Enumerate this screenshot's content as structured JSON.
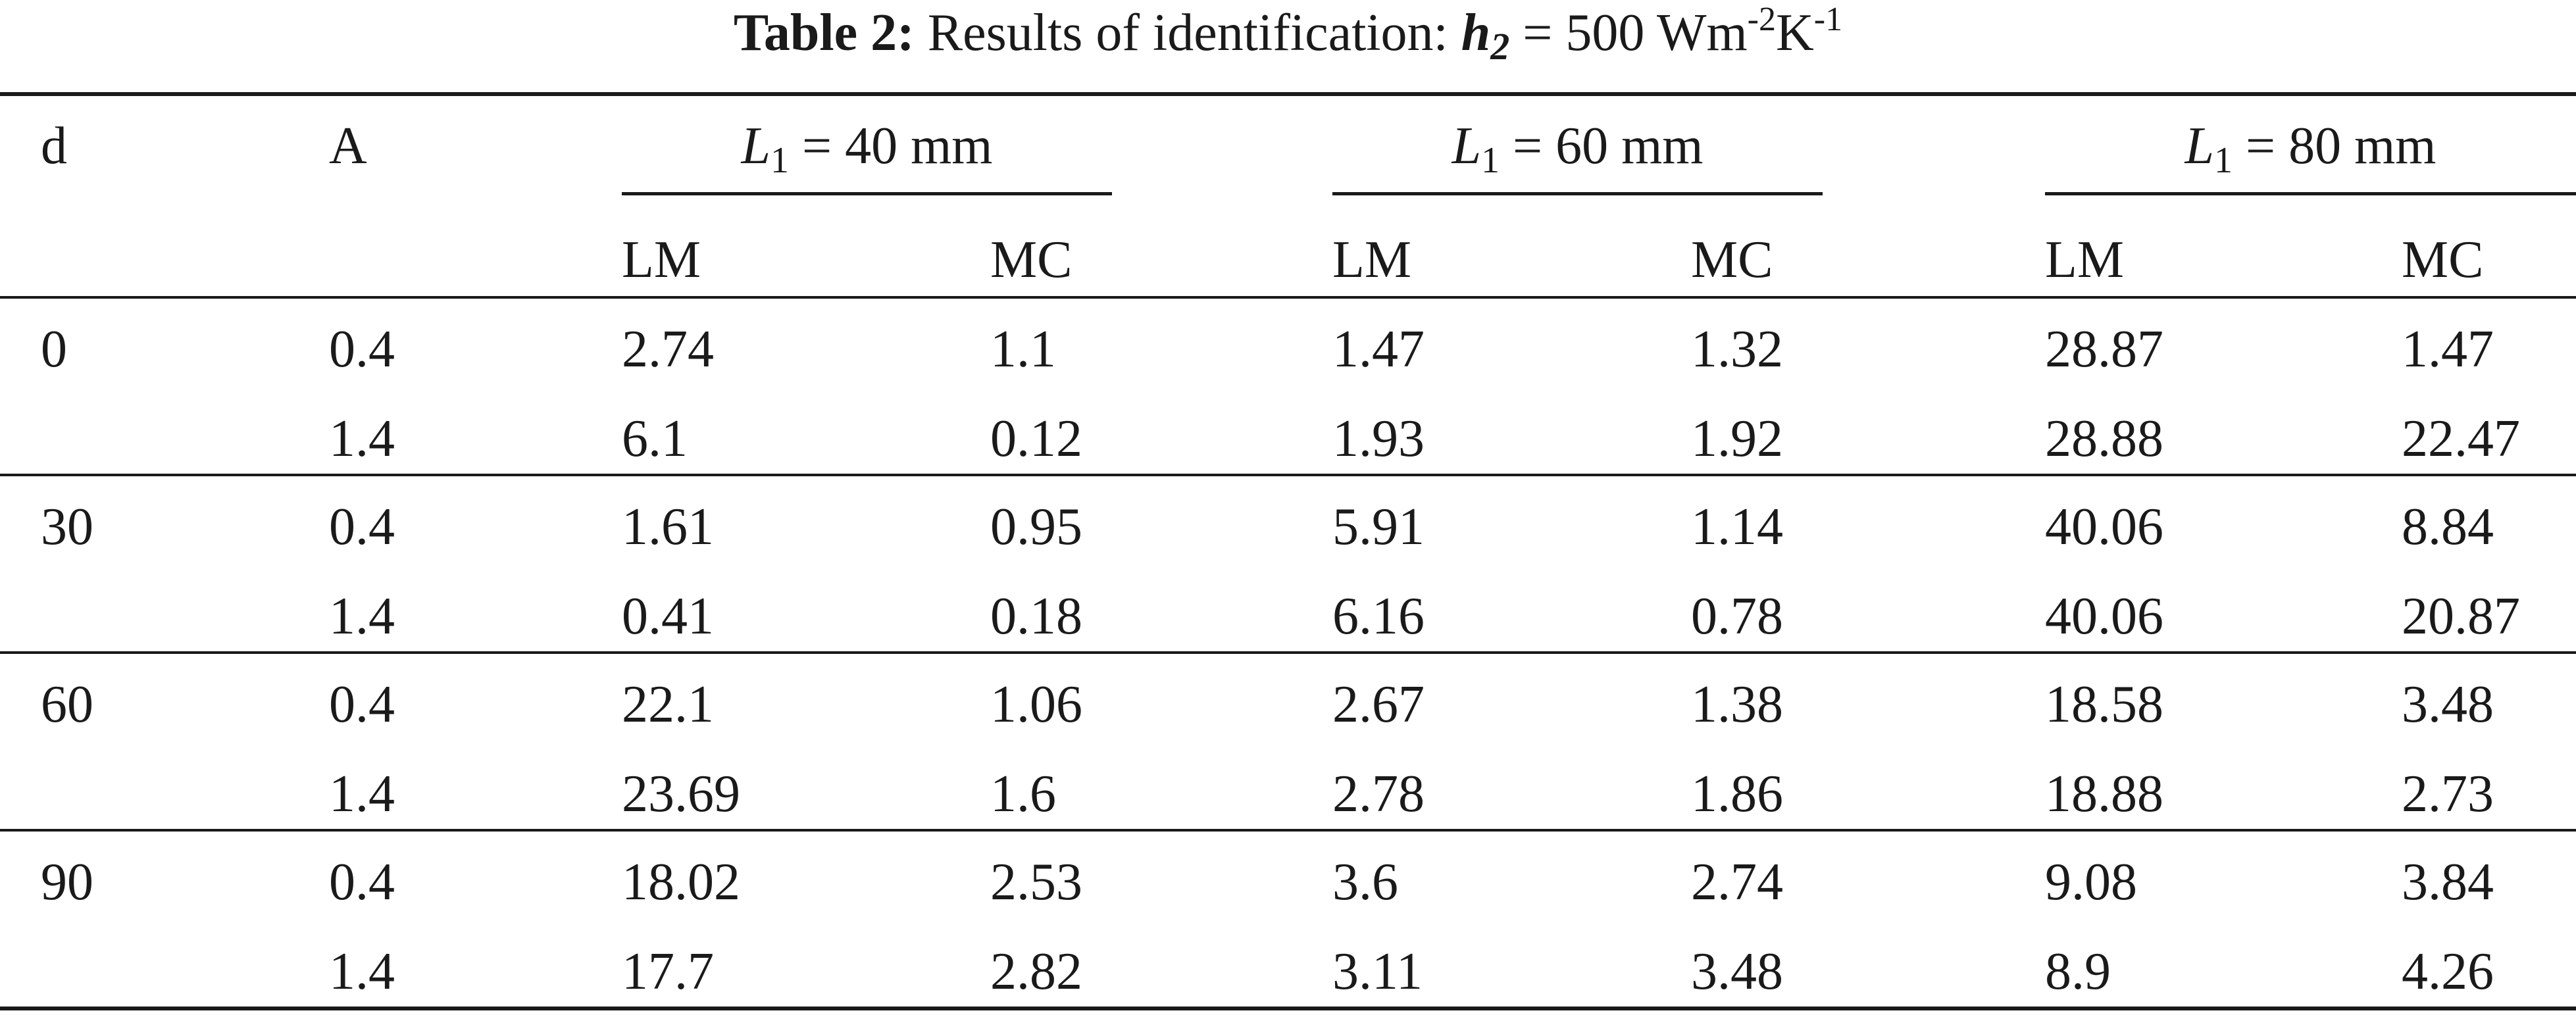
{
  "caption": {
    "label": "Table 2:",
    "text": "Results of identification:",
    "variable": "h",
    "variable_subscript": "2",
    "equals": "= 500 Wm",
    "unit_exp1": "-2",
    "unit_mid": "K",
    "unit_exp2": "-1"
  },
  "header": {
    "col_d": "d",
    "col_a": "A",
    "groups": [
      {
        "var": "L",
        "sub": "1",
        "rest": "= 40 mm"
      },
      {
        "var": "L",
        "sub": "1",
        "rest": "= 60 mm"
      },
      {
        "var": "L",
        "sub": "1",
        "rest": "= 80 mm"
      }
    ],
    "sub_lm": "LM",
    "sub_mc": "MC"
  },
  "rows": [
    [
      "0",
      "0.4",
      "2.74",
      "1.1",
      "1.47",
      "1.32",
      "28.87",
      "1.47"
    ],
    [
      "",
      "1.4",
      "6.1",
      "0.12",
      "1.93",
      "1.92",
      "28.88",
      "22.47"
    ],
    [
      "30",
      "0.4",
      "1.61",
      "0.95",
      "5.91",
      "1.14",
      "40.06",
      "8.84"
    ],
    [
      "",
      "1.4",
      "0.41",
      "0.18",
      "6.16",
      "0.78",
      "40.06",
      "20.87"
    ],
    [
      "60",
      "0.4",
      "22.1",
      "1.06",
      "2.67",
      "1.38",
      "18.58",
      "3.48"
    ],
    [
      "",
      "1.4",
      "23.69",
      "1.6",
      "2.78",
      "1.86",
      "18.88",
      "2.73"
    ],
    [
      "90",
      "0.4",
      "18.02",
      "2.53",
      "3.6",
      "2.74",
      "9.08",
      "3.84"
    ],
    [
      "",
      "1.4",
      "17.7",
      "2.82",
      "3.11",
      "3.48",
      "8.9",
      "4.26"
    ]
  ]
}
